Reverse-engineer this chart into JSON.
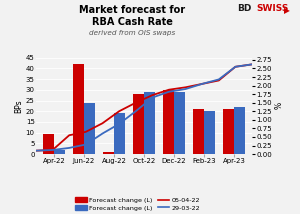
{
  "title_line1": "Market forecast for",
  "title_line2": "RBA Cash Rate",
  "subtitle": "derived from OIS swaps",
  "ylabel_left": "BPs",
  "ylabel_right": "%",
  "x_labels": [
    "Apr-22",
    "Jun-22",
    "Aug-22",
    "Oct-22",
    "Dec-22",
    "Feb-23",
    "Apr-23"
  ],
  "red_bars": [
    9.5,
    42.0,
    1.0,
    28.0,
    30.0,
    21.0,
    21.0
  ],
  "blue_bars": [
    2.0,
    24.0,
    19.0,
    29.0,
    29.0,
    20.0,
    22.0
  ],
  "line_red_y": [
    0.1,
    0.12,
    0.55,
    0.65,
    0.9,
    1.25,
    1.5,
    1.72,
    1.88,
    1.95,
    2.05,
    2.15,
    2.55,
    2.62
  ],
  "line_blue_y": [
    0.1,
    0.12,
    0.18,
    0.28,
    0.6,
    0.88,
    1.25,
    1.65,
    1.82,
    1.9,
    2.05,
    2.18,
    2.55,
    2.62
  ],
  "ylim_left": [
    0,
    45
  ],
  "ylim_right": [
    0.0,
    2.8125
  ],
  "yticks_left": [
    0,
    5,
    10,
    15,
    20,
    25,
    30,
    35,
    40,
    45
  ],
  "yticks_right": [
    0.0,
    0.25,
    0.5,
    0.75,
    1.0,
    1.25,
    1.5,
    1.75,
    2.0,
    2.25,
    2.5,
    2.75
  ],
  "bar_color_red": "#cc0000",
  "bar_color_blue": "#3a6abf",
  "line_color_red": "#cc0000",
  "line_color_blue": "#3a6abf",
  "bg_color": "#f2f2f2",
  "grid_color": "#ffffff",
  "logo_bd_color": "#1a1a1a",
  "logo_swiss_color": "#cc0000"
}
